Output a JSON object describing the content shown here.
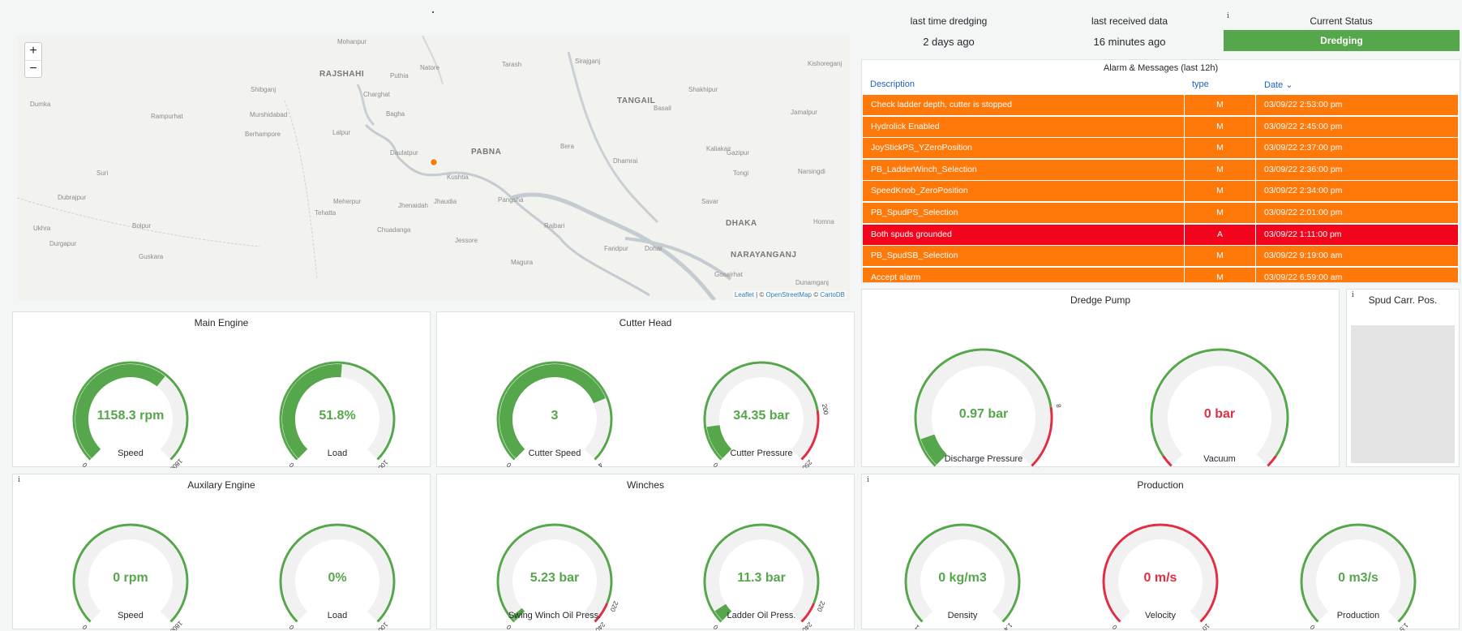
{
  "header": {
    "last_dredging_label": "last time dredging",
    "last_dredging_value": "2 days ago",
    "last_received_label": "last received data",
    "last_received_value": "16 minutes ago",
    "status_label": "Current Status",
    "status_value": "Dredging",
    "status_color": "#56a64b",
    "info_symbol": "i"
  },
  "map": {
    "zoom_in": "+",
    "zoom_out": "−",
    "attribution_leaflet": "Leaflet",
    "attribution_sep": " | © ",
    "attribution_osm": "OpenStreetMap",
    "attribution_mid": " © ",
    "attribution_carto": "CartoDB",
    "labels": [
      {
        "text": "Mohanpur",
        "cls": ""
      },
      {
        "text": "RAJSHAHI",
        "cls": "big"
      },
      {
        "text": "Puthia",
        "cls": ""
      },
      {
        "text": "Natore",
        "cls": ""
      },
      {
        "text": "Tarash",
        "cls": ""
      },
      {
        "text": "Sirajganj",
        "cls": ""
      },
      {
        "text": "Kishoreganj",
        "cls": ""
      },
      {
        "text": "Shibganj",
        "cls": ""
      },
      {
        "text": "Charghat",
        "cls": ""
      },
      {
        "text": "Shakhipur",
        "cls": ""
      },
      {
        "text": "Murshidabad",
        "cls": ""
      },
      {
        "text": "Bagha",
        "cls": ""
      },
      {
        "text": "TANGAIL",
        "cls": "big"
      },
      {
        "text": "Basail",
        "cls": ""
      },
      {
        "text": "Rampurhat",
        "cls": ""
      },
      {
        "text": "Berhampore",
        "cls": ""
      },
      {
        "text": "Lalpur",
        "cls": ""
      },
      {
        "text": "Daulatpur",
        "cls": ""
      },
      {
        "text": "PABNA",
        "cls": "big"
      },
      {
        "text": "Bera",
        "cls": ""
      },
      {
        "text": "Kaliakair",
        "cls": ""
      },
      {
        "text": "Gazipur",
        "cls": ""
      },
      {
        "text": "Kushtia",
        "cls": ""
      },
      {
        "text": "Dhamrai",
        "cls": ""
      },
      {
        "text": "Tongi",
        "cls": ""
      },
      {
        "text": "Narsingdi",
        "cls": ""
      },
      {
        "text": "Suri",
        "cls": ""
      },
      {
        "text": "Dubrajpur",
        "cls": ""
      },
      {
        "text": "Meherpur",
        "cls": ""
      },
      {
        "text": "Jhenaidah",
        "cls": ""
      },
      {
        "text": "Jhaudia",
        "cls": ""
      },
      {
        "text": "Pangsha",
        "cls": ""
      },
      {
        "text": "Savar",
        "cls": ""
      },
      {
        "text": "DHAKA",
        "cls": "big"
      },
      {
        "text": "Rajbari",
        "cls": ""
      },
      {
        "text": "Bolpur",
        "cls": ""
      },
      {
        "text": "Tehatta",
        "cls": ""
      },
      {
        "text": "Chuadanga",
        "cls": ""
      },
      {
        "text": "NARAYANGANJ",
        "cls": "big"
      },
      {
        "text": "Homna",
        "cls": ""
      },
      {
        "text": "Durgapur",
        "cls": ""
      },
      {
        "text": "Faridpur",
        "cls": ""
      },
      {
        "text": "Dohar",
        "cls": ""
      },
      {
        "text": "Guskara",
        "cls": ""
      },
      {
        "text": "Magura",
        "cls": ""
      },
      {
        "text": "Gosairhat",
        "cls": ""
      },
      {
        "text": "Ukhra",
        "cls": ""
      },
      {
        "text": "Dumka",
        "cls": ""
      },
      {
        "text": "Jamalpur",
        "cls": ""
      },
      {
        "text": "Jessore",
        "cls": ""
      },
      {
        "text": "Dunamganj",
        "cls": ""
      }
    ]
  },
  "alarms": {
    "title": "Alarm & Messages (last 12h)",
    "col_description": "Description",
    "col_type": "type",
    "col_date": "Date ⌄",
    "rows": [
      {
        "desc": "Check ladder depth, cutter is stopped",
        "type": "M",
        "date": "03/09/22 2:53:00 pm",
        "color": "#ff780a"
      },
      {
        "desc": "Hydrolick Enabled",
        "type": "M",
        "date": "03/09/22 2:45:00 pm",
        "color": "#ff780a"
      },
      {
        "desc": "JoyStickPS_YZeroPosition",
        "type": "M",
        "date": "03/09/22 2:37:00 pm",
        "color": "#ff780a"
      },
      {
        "desc": "PB_LadderWinch_Selection",
        "type": "M",
        "date": "03/09/22 2:36:00 pm",
        "color": "#ff780a"
      },
      {
        "desc": "SpeedKnob_ZeroPosition",
        "type": "M",
        "date": "03/09/22 2:34:00 pm",
        "color": "#ff780a"
      },
      {
        "desc": "PB_SpudPS_Selection",
        "type": "M",
        "date": "03/09/22 2:01:00 pm",
        "color": "#ff780a"
      },
      {
        "desc": "Both spuds grounded",
        "type": "A",
        "date": "03/09/22 1:11:00 pm",
        "color": "#f2051c"
      },
      {
        "desc": "PB_SpudSB_Selection",
        "type": "M",
        "date": "03/09/22 9:19:00 am",
        "color": "#ff780a"
      },
      {
        "desc": "Accept alarm",
        "type": "M",
        "date": "03/09/22 6:59:00 am",
        "color": "#ff780a"
      }
    ]
  },
  "panels": {
    "main_engine": "Main Engine",
    "cutter_head": "Cutter Head",
    "dredge_pump": "Dredge Pump",
    "spud": "Spud Carr. Pos.",
    "aux_engine": "Auxilary Engine",
    "winches": "Winches",
    "production": "Production"
  },
  "gauges": {
    "me_speed": {
      "value": "1158.3 rpm",
      "label": "Speed",
      "min": "0",
      "max": "1800",
      "fraction": 0.6435,
      "arc": "green",
      "red_from": null,
      "value_color": "green"
    },
    "me_load": {
      "value": "51.8%",
      "label": "Load",
      "min": "0",
      "max": "100",
      "fraction": 0.518,
      "arc": "green",
      "red_from": null,
      "value_color": "green"
    },
    "ch_speed": {
      "value": "3",
      "label": "Cutter Speed",
      "min": "0",
      "max": "4",
      "fraction": 0.75,
      "arc": "green",
      "red_from": null,
      "value_color": "green"
    },
    "ch_pressure": {
      "value": "34.35 bar",
      "label": "Cutter Pressure",
      "min": "0",
      "max": "250",
      "mid": "200",
      "fraction": 0.1374,
      "arc": "green",
      "red_from": 0.8,
      "value_color": "green"
    },
    "dp_discharge": {
      "value": "0.97 bar",
      "label": "Discharge Pressure",
      "min": "0",
      "max": "10",
      "mid": "8",
      "fraction": 0.097,
      "arc": "green",
      "red_from": 0.8,
      "value_color": "green"
    },
    "dp_vacuum": {
      "value": "0 bar",
      "label": "Vacuum",
      "min": "0",
      "max": "-1",
      "fraction": 0,
      "arc": "green",
      "red_from": null,
      "red_ends": true,
      "value_color": "red"
    },
    "ae_speed": {
      "value": "0 rpm",
      "label": "Speed",
      "min": "0",
      "max": "1800",
      "fraction": 0,
      "arc": "green",
      "red_from": null,
      "value_color": "green"
    },
    "ae_load": {
      "value": "0%",
      "label": "Load",
      "min": "0",
      "max": "100",
      "fraction": 0,
      "arc": "green",
      "red_from": null,
      "value_color": "green"
    },
    "w_swing": {
      "value": "5.23 bar",
      "label": "Swing Winch Oil Press.",
      "min": "0",
      "max": "240",
      "mid": "220",
      "fraction": 0.0218,
      "arc": "green",
      "red_from": 0.917,
      "value_color": "green"
    },
    "w_ladder": {
      "value": "11.3 bar",
      "label": "Ladder Oil Press.",
      "min": "0",
      "max": "240",
      "mid": "220",
      "fraction": 0.047,
      "arc": "green",
      "red_from": 0.917,
      "value_color": "green"
    },
    "p_density": {
      "value": "0 kg/m3",
      "label": "Density",
      "min": "1",
      "max": "1.4",
      "fraction": 0,
      "arc": "green",
      "red_from": null,
      "value_color": "green"
    },
    "p_velocity": {
      "value": "0 m/s",
      "label": "Velocity",
      "min": "0",
      "max": "10",
      "fraction": 0,
      "arc": "red",
      "red_from": null,
      "value_color": "red"
    },
    "p_production": {
      "value": "0 m3/s",
      "label": "Production",
      "min": "0",
      "max": "1.5",
      "fraction": 0,
      "arc": "green",
      "red_from": null,
      "value_color": "green"
    }
  }
}
